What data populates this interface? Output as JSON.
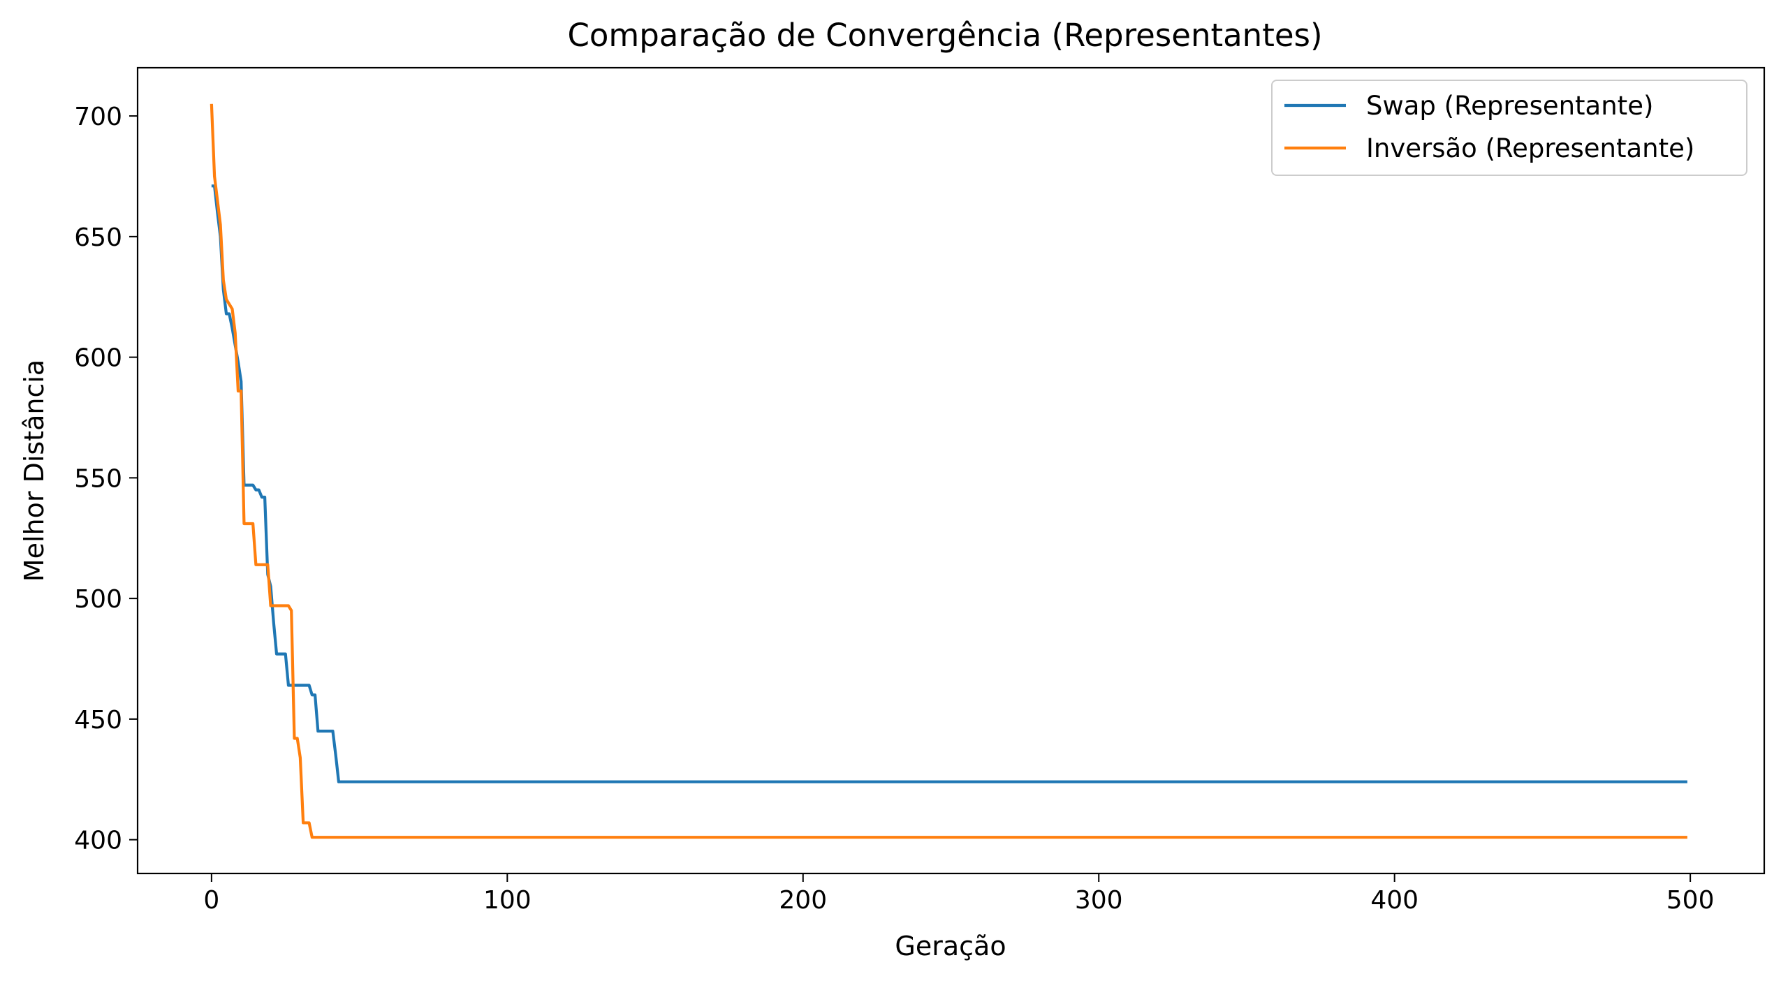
{
  "chart_data": {
    "type": "line",
    "title": "Comparação de Convergência (Representantes)",
    "xlabel": "Geração",
    "ylabel": "Melhor Distância",
    "xlim": [
      -25,
      525
    ],
    "ylim": [
      386,
      720
    ],
    "xticks": [
      0,
      100,
      200,
      300,
      400,
      500
    ],
    "yticks": [
      400,
      450,
      500,
      550,
      600,
      650,
      700
    ],
    "grid": false,
    "legend_position": "top-right",
    "series": [
      {
        "name": "Swap (Representante)",
        "color": "#1f77b4",
        "points": [
          [
            0,
            671
          ],
          [
            1,
            671
          ],
          [
            2,
            660
          ],
          [
            3,
            650
          ],
          [
            4,
            628
          ],
          [
            5,
            618
          ],
          [
            6,
            618
          ],
          [
            7,
            612
          ],
          [
            8,
            605
          ],
          [
            9,
            598
          ],
          [
            10,
            590
          ],
          [
            11,
            547
          ],
          [
            12,
            547
          ],
          [
            13,
            547
          ],
          [
            14,
            547
          ],
          [
            15,
            545
          ],
          [
            16,
            545
          ],
          [
            17,
            542
          ],
          [
            18,
            542
          ],
          [
            19,
            510
          ],
          [
            20,
            505
          ],
          [
            21,
            490
          ],
          [
            22,
            477
          ],
          [
            23,
            477
          ],
          [
            24,
            477
          ],
          [
            25,
            477
          ],
          [
            26,
            464
          ],
          [
            27,
            464
          ],
          [
            28,
            464
          ],
          [
            29,
            464
          ],
          [
            30,
            464
          ],
          [
            31,
            464
          ],
          [
            32,
            464
          ],
          [
            33,
            464
          ],
          [
            34,
            460
          ],
          [
            35,
            460
          ],
          [
            36,
            445
          ],
          [
            37,
            445
          ],
          [
            38,
            445
          ],
          [
            39,
            445
          ],
          [
            40,
            445
          ],
          [
            41,
            445
          ],
          [
            42,
            435
          ],
          [
            43,
            424
          ],
          [
            60,
            424
          ],
          [
            100,
            424
          ],
          [
            200,
            424
          ],
          [
            300,
            424
          ],
          [
            400,
            424
          ],
          [
            499,
            424
          ]
        ]
      },
      {
        "name": "Inversão (Representante)",
        "color": "#ff7f0e",
        "points": [
          [
            0,
            705
          ],
          [
            1,
            675
          ],
          [
            2,
            665
          ],
          [
            3,
            655
          ],
          [
            4,
            632
          ],
          [
            5,
            624
          ],
          [
            6,
            622
          ],
          [
            7,
            620
          ],
          [
            8,
            610
          ],
          [
            9,
            586
          ],
          [
            10,
            586
          ],
          [
            11,
            531
          ],
          [
            12,
            531
          ],
          [
            13,
            531
          ],
          [
            14,
            531
          ],
          [
            15,
            514
          ],
          [
            16,
            514
          ],
          [
            17,
            514
          ],
          [
            18,
            514
          ],
          [
            19,
            514
          ],
          [
            20,
            497
          ],
          [
            21,
            497
          ],
          [
            22,
            497
          ],
          [
            23,
            497
          ],
          [
            24,
            497
          ],
          [
            25,
            497
          ],
          [
            26,
            497
          ],
          [
            27,
            495
          ],
          [
            28,
            442
          ],
          [
            29,
            442
          ],
          [
            30,
            434
          ],
          [
            31,
            407
          ],
          [
            32,
            407
          ],
          [
            33,
            407
          ],
          [
            34,
            401
          ],
          [
            35,
            401
          ],
          [
            60,
            401
          ],
          [
            100,
            401
          ],
          [
            200,
            401
          ],
          [
            300,
            401
          ],
          [
            400,
            401
          ],
          [
            499,
            401
          ]
        ]
      }
    ]
  }
}
